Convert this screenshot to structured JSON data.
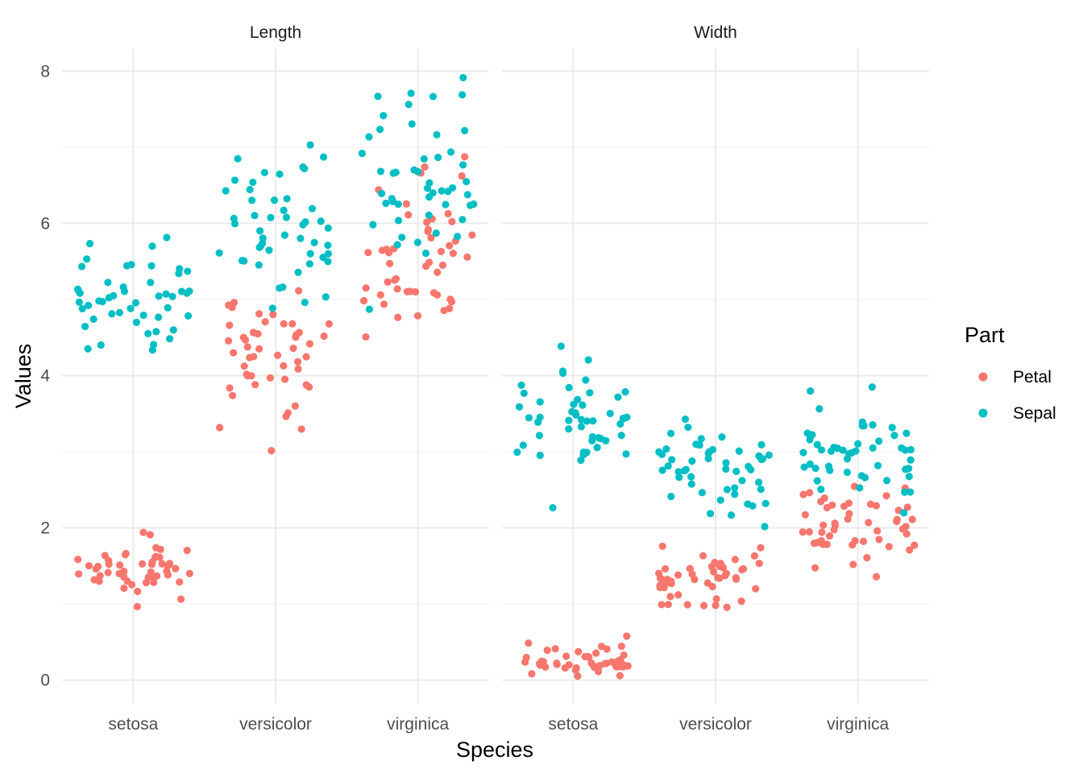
{
  "chart_data": {
    "type": "scatter",
    "jitter": true,
    "xlabel": "Species",
    "ylabel": "Values",
    "categories": [
      "setosa",
      "versicolor",
      "virginica"
    ],
    "ylim": [
      -0.3,
      8.3
    ],
    "y_ticks": [
      0,
      2,
      4,
      6,
      8
    ],
    "grid": true,
    "legend": {
      "title": "Part",
      "position": "right"
    },
    "colors": {
      "Petal": "#F8766D",
      "Sepal": "#00BFC4"
    },
    "facets": [
      "Length",
      "Width"
    ],
    "series": [
      {
        "name": "Petal",
        "facet": "Length",
        "values": {
          "setosa": [
            1.4,
            1.4,
            1.3,
            1.5,
            1.4,
            1.7,
            1.4,
            1.5,
            1.4,
            1.5,
            1.5,
            1.6,
            1.4,
            1.1,
            1.2,
            1.5,
            1.3,
            1.4,
            1.7,
            1.5,
            1.7,
            1.5,
            1.0,
            1.7,
            1.9,
            1.6,
            1.6,
            1.5,
            1.4,
            1.6,
            1.6,
            1.5,
            1.5,
            1.4,
            1.5,
            1.2,
            1.3,
            1.4,
            1.3,
            1.5,
            1.3,
            1.3,
            1.3,
            1.6,
            1.9,
            1.4,
            1.6,
            1.4,
            1.5,
            1.4
          ],
          "versicolor": [
            4.7,
            4.5,
            4.9,
            4.0,
            4.6,
            4.5,
            4.7,
            3.3,
            4.6,
            3.9,
            3.5,
            4.2,
            4.0,
            4.7,
            3.6,
            4.4,
            4.5,
            4.1,
            4.5,
            3.9,
            4.8,
            4.0,
            4.9,
            4.7,
            4.3,
            4.4,
            4.8,
            5.0,
            4.5,
            3.5,
            3.8,
            3.7,
            3.9,
            5.1,
            4.5,
            4.5,
            4.7,
            4.4,
            4.1,
            4.0,
            4.4,
            4.6,
            4.0,
            3.3,
            4.2,
            4.2,
            4.2,
            4.3,
            3.0,
            4.1
          ],
          "virginica": [
            6.0,
            5.1,
            5.9,
            5.6,
            5.8,
            6.6,
            4.5,
            6.3,
            5.8,
            6.1,
            5.1,
            5.3,
            5.5,
            5.0,
            5.1,
            5.3,
            5.5,
            6.7,
            6.9,
            5.0,
            5.7,
            4.9,
            6.7,
            4.9,
            5.7,
            6.0,
            4.8,
            4.9,
            5.6,
            5.8,
            6.1,
            6.4,
            5.6,
            5.1,
            5.6,
            6.1,
            5.6,
            5.5,
            4.8,
            5.4,
            5.6,
            5.1,
            5.1,
            5.9,
            5.7,
            5.2,
            5.0,
            5.2,
            5.4,
            5.1
          ]
        }
      },
      {
        "name": "Sepal",
        "facet": "Length",
        "values": {
          "setosa": [
            5.1,
            4.9,
            4.7,
            4.6,
            5.0,
            5.4,
            4.6,
            5.0,
            4.4,
            4.9,
            5.4,
            4.8,
            4.8,
            4.3,
            5.8,
            5.7,
            5.4,
            5.1,
            5.7,
            5.1,
            5.4,
            5.1,
            4.6,
            5.1,
            4.8,
            5.0,
            5.0,
            5.2,
            5.2,
            4.7,
            4.8,
            5.4,
            5.2,
            5.5,
            4.9,
            5.0,
            5.5,
            4.9,
            4.4,
            5.1,
            5.0,
            4.5,
            4.4,
            5.0,
            5.1,
            4.8,
            5.1,
            4.6,
            5.3,
            5.0
          ],
          "versicolor": [
            7.0,
            6.4,
            6.9,
            5.5,
            6.5,
            5.7,
            6.3,
            4.9,
            6.6,
            5.2,
            5.0,
            5.9,
            6.0,
            6.1,
            5.6,
            6.7,
            5.6,
            5.8,
            6.2,
            5.6,
            5.9,
            6.1,
            6.3,
            6.1,
            6.4,
            6.6,
            6.8,
            6.7,
            6.0,
            5.7,
            5.5,
            5.5,
            5.8,
            6.0,
            5.4,
            6.0,
            6.7,
            6.3,
            5.6,
            5.5,
            5.5,
            6.1,
            5.8,
            5.0,
            5.6,
            5.7,
            5.7,
            6.2,
            5.1,
            5.7
          ],
          "virginica": [
            6.3,
            5.8,
            7.1,
            6.3,
            6.5,
            7.6,
            4.9,
            7.3,
            6.7,
            7.2,
            6.5,
            6.4,
            6.8,
            5.7,
            5.8,
            6.4,
            6.5,
            7.7,
            7.7,
            6.0,
            6.9,
            5.6,
            7.7,
            6.3,
            6.7,
            7.2,
            6.2,
            6.1,
            6.4,
            7.2,
            7.4,
            7.9,
            6.4,
            6.3,
            6.1,
            7.7,
            6.3,
            6.4,
            6.0,
            6.9,
            6.7,
            6.9,
            5.8,
            6.8,
            6.7,
            6.7,
            6.3,
            6.5,
            6.2,
            5.9
          ]
        }
      },
      {
        "name": "Petal",
        "facet": "Width",
        "values": {
          "setosa": [
            0.2,
            0.2,
            0.2,
            0.2,
            0.2,
            0.4,
            0.3,
            0.2,
            0.2,
            0.1,
            0.2,
            0.2,
            0.1,
            0.1,
            0.2,
            0.4,
            0.4,
            0.3,
            0.3,
            0.3,
            0.2,
            0.4,
            0.2,
            0.5,
            0.2,
            0.2,
            0.4,
            0.2,
            0.2,
            0.2,
            0.2,
            0.4,
            0.1,
            0.2,
            0.2,
            0.2,
            0.2,
            0.1,
            0.2,
            0.2,
            0.3,
            0.3,
            0.2,
            0.6,
            0.4,
            0.3,
            0.2,
            0.2,
            0.2,
            0.2
          ],
          "versicolor": [
            1.4,
            1.5,
            1.5,
            1.3,
            1.5,
            1.3,
            1.6,
            1.0,
            1.3,
            1.4,
            1.0,
            1.5,
            1.0,
            1.4,
            1.3,
            1.4,
            1.5,
            1.0,
            1.5,
            1.1,
            1.8,
            1.3,
            1.5,
            1.2,
            1.3,
            1.4,
            1.4,
            1.7,
            1.5,
            1.0,
            1.1,
            1.0,
            1.2,
            1.6,
            1.5,
            1.6,
            1.5,
            1.3,
            1.3,
            1.3,
            1.2,
            1.4,
            1.2,
            1.0,
            1.3,
            1.2,
            1.3,
            1.3,
            1.1,
            1.3
          ],
          "virginica": [
            2.5,
            1.9,
            2.1,
            1.8,
            2.2,
            2.1,
            1.7,
            1.8,
            1.8,
            2.5,
            2.0,
            1.9,
            2.1,
            2.0,
            2.4,
            2.3,
            1.8,
            2.2,
            2.3,
            1.5,
            2.3,
            2.0,
            2.0,
            1.8,
            2.1,
            1.8,
            1.8,
            1.8,
            2.1,
            1.6,
            1.9,
            2.0,
            2.2,
            1.5,
            1.4,
            2.3,
            2.4,
            1.8,
            1.8,
            2.1,
            2.4,
            2.3,
            1.9,
            2.3,
            2.5,
            2.3,
            1.9,
            2.0,
            2.3,
            1.8
          ]
        }
      },
      {
        "name": "Sepal",
        "facet": "Width",
        "values": {
          "setosa": [
            3.5,
            3.0,
            3.2,
            3.1,
            3.6,
            3.9,
            3.4,
            3.4,
            2.9,
            3.1,
            3.7,
            3.4,
            3.0,
            3.0,
            4.0,
            4.4,
            3.9,
            3.5,
            3.8,
            3.8,
            3.4,
            3.7,
            3.6,
            3.3,
            3.4,
            3.0,
            3.4,
            3.5,
            3.4,
            3.2,
            3.1,
            3.4,
            4.1,
            4.2,
            3.1,
            3.2,
            3.5,
            3.6,
            3.0,
            3.4,
            3.5,
            2.3,
            3.2,
            3.5,
            3.8,
            3.0,
            3.8,
            3.2,
            3.7,
            3.3
          ],
          "versicolor": [
            3.2,
            3.2,
            3.1,
            2.3,
            2.8,
            2.8,
            3.3,
            2.4,
            2.9,
            2.7,
            2.0,
            3.0,
            2.2,
            2.9,
            2.9,
            3.1,
            3.0,
            2.7,
            2.2,
            2.5,
            3.2,
            2.8,
            2.5,
            2.8,
            2.9,
            3.0,
            2.8,
            3.0,
            2.9,
            2.6,
            2.4,
            2.4,
            2.7,
            2.7,
            3.0,
            3.4,
            3.1,
            2.3,
            3.0,
            2.5,
            2.6,
            3.0,
            2.6,
            2.3,
            2.7,
            3.0,
            2.9,
            2.9,
            2.5,
            2.8
          ],
          "virginica": [
            3.3,
            2.7,
            3.0,
            2.9,
            3.0,
            3.0,
            2.5,
            2.9,
            2.5,
            3.6,
            3.2,
            2.7,
            3.0,
            2.5,
            2.8,
            3.2,
            3.0,
            3.8,
            2.6,
            2.2,
            3.2,
            2.8,
            2.8,
            2.7,
            3.3,
            3.2,
            2.8,
            3.0,
            2.8,
            3.0,
            2.8,
            3.8,
            2.8,
            2.8,
            2.6,
            3.0,
            3.4,
            3.1,
            3.0,
            3.1,
            3.1,
            3.1,
            2.7,
            3.2,
            3.3,
            3.0,
            2.5,
            3.0,
            3.4,
            3.0
          ]
        }
      }
    ]
  }
}
